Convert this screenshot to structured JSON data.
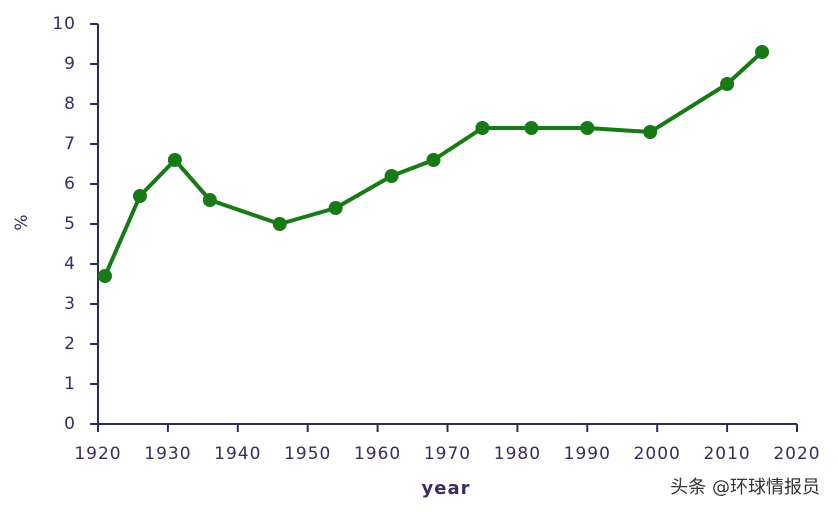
{
  "chart_data": {
    "type": "line",
    "x": [
      1921,
      1926,
      1931,
      1936,
      1946,
      1954,
      1962,
      1968,
      1975,
      1982,
      1990,
      1999,
      2010,
      2015
    ],
    "values": [
      3.7,
      5.7,
      6.6,
      5.6,
      5.0,
      5.4,
      6.2,
      6.6,
      7.4,
      7.4,
      7.4,
      7.3,
      8.5,
      9.3
    ],
    "color": "#177a17",
    "x_label": "year",
    "y_label": "%",
    "xlim": [
      1920,
      2020
    ],
    "xticks": [
      1920,
      1930,
      1940,
      1950,
      1960,
      1970,
      1980,
      1990,
      2000,
      2010,
      2020
    ],
    "ylim": [
      0,
      10
    ],
    "yticks": [
      0,
      1,
      2,
      3,
      4,
      5,
      6,
      7,
      8,
      9,
      10
    ],
    "grid": false,
    "watermark": "头条 @环球情报员"
  }
}
